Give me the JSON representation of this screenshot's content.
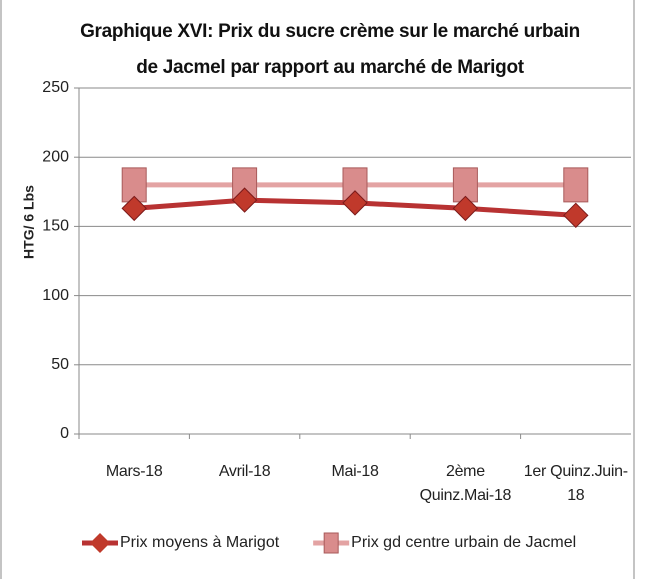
{
  "chart_data": {
    "type": "line",
    "title": "Graphique XVI: Prix du sucre crème sur le marché urbain de Jacmel par rapport au marché de Marigot",
    "y_label": "HTG/ 6 Lbs",
    "categories": [
      "Mars-18",
      "Avril-18",
      "Mai-18",
      "2ème Quinz.Mai-18",
      "1er Quinz.Juin-18"
    ],
    "series": [
      {
        "name": "Prix moyens à Marigot",
        "color": "#b83232",
        "marker": "diamond",
        "values": [
          163,
          169,
          167,
          163,
          158
        ]
      },
      {
        "name": "Prix gd centre urbain de Jacmel",
        "color": "#e3a3a3",
        "marker": "square",
        "values": [
          180,
          180,
          180,
          180,
          180
        ]
      }
    ],
    "ylim": [
      0,
      250
    ],
    "yticks": [
      0,
      50,
      100,
      150,
      200,
      250
    ],
    "grid": true,
    "legend": "bottom"
  }
}
